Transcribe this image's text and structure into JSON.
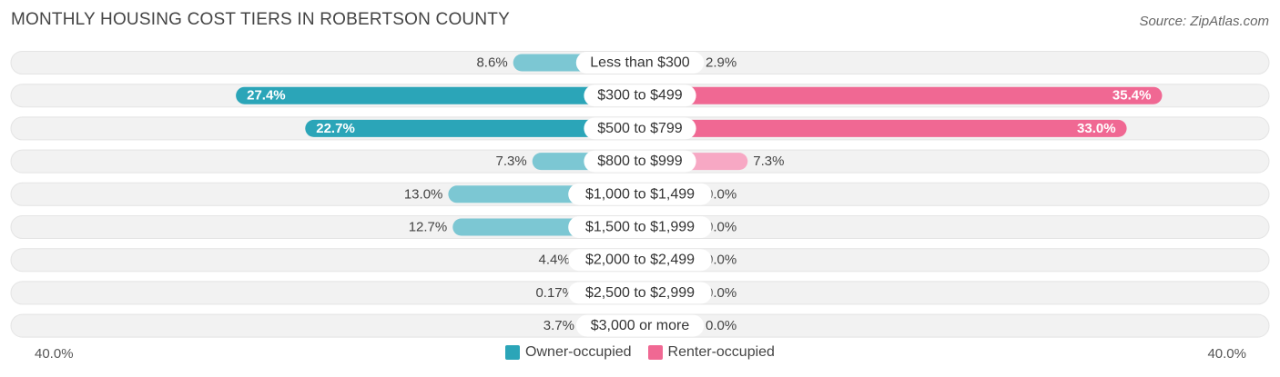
{
  "title": "MONTHLY HOUSING COST TIERS IN ROBERTSON COUNTY",
  "source": "Source: ZipAtlas.com",
  "colors": {
    "owner_light": "#7cc7d3",
    "owner_dark": "#2ba5b8",
    "renter_light": "#f7a8c4",
    "renter_dark": "#f06893",
    "track": "#f1f1f1"
  },
  "chart_data": {
    "type": "bar",
    "orientation": "horizontal-diverging",
    "categories": [
      "Less than $300",
      "$300 to $499",
      "$500 to $799",
      "$800 to $999",
      "$1,000 to $1,499",
      "$1,500 to $1,999",
      "$2,000 to $2,499",
      "$2,500 to $2,999",
      "$3,000 or more"
    ],
    "series": [
      {
        "name": "Owner-occupied",
        "values": [
          8.6,
          27.4,
          22.7,
          7.3,
          13.0,
          12.7,
          4.4,
          0.17,
          3.7
        ],
        "labels": [
          "8.6%",
          "27.4%",
          "22.7%",
          "7.3%",
          "13.0%",
          "12.7%",
          "4.4%",
          "0.17%",
          "3.7%"
        ]
      },
      {
        "name": "Renter-occupied",
        "values": [
          2.9,
          35.4,
          33.0,
          7.3,
          0.0,
          0.0,
          0.0,
          0.0,
          0.0
        ],
        "labels": [
          "2.9%",
          "35.4%",
          "33.0%",
          "7.3%",
          "0.0%",
          "0.0%",
          "0.0%",
          "0.0%",
          "0.0%"
        ]
      }
    ],
    "axis_min_label": "40.0%",
    "axis_max_label": "40.0%",
    "xlim": [
      -40,
      40
    ],
    "legend_position": "bottom-center"
  }
}
